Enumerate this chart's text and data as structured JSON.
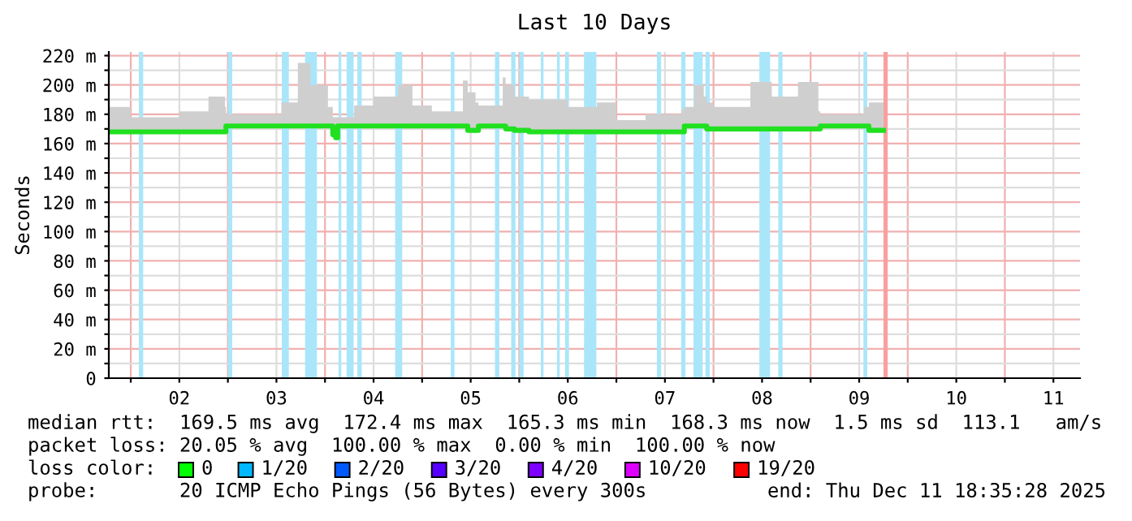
{
  "chart_data": {
    "type": "line",
    "title": "Last 10 Days",
    "ylabel": "Seconds",
    "xlim": [
      1.774,
      11.774
    ],
    "ylim": [
      0,
      222.5
    ],
    "xticks": [
      {
        "value": 2,
        "label": null
      },
      {
        "value": 2.5,
        "label": "02"
      },
      {
        "value": 3,
        "label": null
      },
      {
        "value": 3.5,
        "label": "03"
      },
      {
        "value": 4,
        "label": null
      },
      {
        "value": 4.5,
        "label": "04"
      },
      {
        "value": 5,
        "label": null
      },
      {
        "value": 5.5,
        "label": "05"
      },
      {
        "value": 6,
        "label": null
      },
      {
        "value": 6.5,
        "label": "06"
      },
      {
        "value": 7,
        "label": null
      },
      {
        "value": 7.5,
        "label": "07"
      },
      {
        "value": 8,
        "label": null
      },
      {
        "value": 8.5,
        "label": "08"
      },
      {
        "value": 9,
        "label": null
      },
      {
        "value": 9.5,
        "label": "09"
      },
      {
        "value": 10,
        "label": null
      },
      {
        "value": 10.5,
        "label": "10"
      },
      {
        "value": 11,
        "label": null
      },
      {
        "value": 11.5,
        "label": "11"
      }
    ],
    "yticks": [
      0,
      {
        "value": 10,
        "label": null
      },
      {
        "value": 20,
        "label": "20 m"
      },
      {
        "value": 30,
        "label": null
      },
      {
        "value": 40,
        "label": "40 m"
      },
      {
        "value": 50,
        "label": null
      },
      {
        "value": 60,
        "label": "60 m"
      },
      {
        "value": 70,
        "label": null
      },
      {
        "value": 80,
        "label": "80 m"
      },
      {
        "value": 90,
        "label": null
      },
      {
        "value": 100,
        "label": "100 m"
      },
      {
        "value": 110,
        "label": null
      },
      {
        "value": 120,
        "label": "120 m"
      },
      {
        "value": 130,
        "label": null
      },
      {
        "value": 140,
        "label": "140 m"
      },
      {
        "value": 150,
        "label": null
      },
      {
        "value": 160,
        "label": "160 m"
      },
      {
        "value": 170,
        "label": null
      },
      {
        "value": 180,
        "label": "180 m"
      },
      {
        "value": 190,
        "label": null
      },
      {
        "value": 200,
        "label": "200 m"
      },
      {
        "value": 210,
        "label": null
      },
      {
        "value": 220,
        "label": "220 m"
      }
    ],
    "grid": true,
    "series": [
      {
        "color": "#20e020",
        "x": [
          1.78,
          2.0,
          2.3,
          2.5,
          2.8,
          2.97,
          2.98,
          3.3,
          3.55,
          3.72,
          3.85,
          4.03,
          4.08,
          4.11,
          4.13,
          4.3,
          4.5,
          4.75,
          4.9,
          5.1,
          5.42,
          5.47,
          5.55,
          5.58,
          5.83,
          5.86,
          5.95,
          6.1,
          6.5,
          6.8,
          7.0,
          7.3,
          7.67,
          7.7,
          7.8,
          7.9,
          7.93,
          8.0,
          8.38,
          8.6,
          8.87,
          9.08,
          9.1,
          9.3,
          9.55,
          9.6,
          9.75
        ],
        "values": [
          168,
          168,
          168,
          168,
          168,
          168,
          172,
          172,
          172,
          172,
          172,
          172,
          166,
          164,
          172,
          172,
          172,
          172,
          172,
          172,
          172,
          169,
          169,
          172,
          172,
          170,
          169,
          168,
          168,
          168,
          168,
          168,
          168,
          172,
          172,
          172,
          170,
          170,
          170,
          170,
          170,
          170,
          172,
          172,
          172,
          169,
          169
        ],
        "lower": [
          168,
          168,
          168,
          168,
          168,
          168,
          172,
          172,
          172,
          172,
          172,
          172,
          166,
          164,
          172,
          172,
          172,
          172,
          172,
          172,
          172,
          169,
          169,
          172,
          172,
          170,
          169,
          168,
          168,
          168,
          168,
          168,
          168,
          172,
          172,
          172,
          170,
          170,
          170,
          170,
          170,
          170,
          172,
          172,
          172,
          169,
          169
        ],
        "upper": [
          185,
          178,
          178,
          182,
          192,
          185,
          180,
          180,
          188,
          215,
          200,
          185,
          178,
          178,
          178,
          186,
          192,
          200,
          186,
          182,
          203,
          195,
          188,
          186,
          205,
          200,
          192,
          190,
          185,
          188,
          176,
          180,
          183,
          185,
          200,
          192,
          188,
          185,
          202,
          192,
          202,
          182,
          180,
          180,
          185,
          188,
          202
        ]
      }
    ],
    "bands": [
      {
        "axis": "x",
        "from": 2.083,
        "to": 2.128,
        "color": "#aae6fa"
      },
      {
        "axis": "x",
        "from": 3.0,
        "to": 3.045,
        "color": "#aae6fa"
      },
      {
        "axis": "x",
        "from": 3.555,
        "to": 3.628,
        "color": "#aae6fa"
      },
      {
        "axis": "x",
        "from": 3.795,
        "to": 3.917,
        "color": "#aae6fa"
      },
      {
        "axis": "x",
        "from": 4.139,
        "to": 4.167,
        "color": "#aae6fa"
      },
      {
        "axis": "x",
        "from": 4.222,
        "to": 4.295,
        "color": "#aae6fa"
      },
      {
        "axis": "x",
        "from": 4.333,
        "to": 4.378,
        "color": "#aae6fa"
      },
      {
        "axis": "x",
        "from": 4.722,
        "to": 4.795,
        "color": "#aae6fa"
      },
      {
        "axis": "x",
        "from": 5.295,
        "to": 5.333,
        "color": "#aae6fa"
      },
      {
        "axis": "x",
        "from": 5.75,
        "to": 5.795,
        "color": "#aae6fa"
      },
      {
        "axis": "x",
        "from": 5.917,
        "to": 5.961,
        "color": "#aae6fa"
      },
      {
        "axis": "x",
        "from": 6.0,
        "to": 6.045,
        "color": "#aae6fa"
      },
      {
        "axis": "x",
        "from": 6.222,
        "to": 6.25,
        "color": "#aae6fa"
      },
      {
        "axis": "x",
        "from": 6.389,
        "to": 6.417,
        "color": "#aae6fa"
      },
      {
        "axis": "x",
        "from": 6.472,
        "to": 6.511,
        "color": "#aae6fa"
      },
      {
        "axis": "x",
        "from": 6.667,
        "to": 6.794,
        "color": "#aae6fa"
      },
      {
        "axis": "x",
        "from": 7.417,
        "to": 7.461,
        "color": "#aae6fa"
      },
      {
        "axis": "x",
        "from": 7.667,
        "to": 7.711,
        "color": "#aae6fa"
      },
      {
        "axis": "x",
        "from": 7.794,
        "to": 7.889,
        "color": "#aae6fa"
      },
      {
        "axis": "x",
        "from": 7.917,
        "to": 7.961,
        "color": "#aae6fa"
      },
      {
        "axis": "x",
        "from": 8.472,
        "to": 8.583,
        "color": "#aae6fa"
      },
      {
        "axis": "x",
        "from": 8.667,
        "to": 8.711,
        "color": "#aae6fa"
      },
      {
        "axis": "x",
        "from": 9.544,
        "to": 9.583,
        "color": "#aae6fa"
      },
      {
        "axis": "x",
        "from": 9.75,
        "to": 9.794,
        "color": "#f8a0a0"
      }
    ],
    "annotations": [
      "median rtt:  169.5 ms avg  172.4 ms max  165.3 ms min  168.3 ms now  1.5 ms sd  113.1   am/s",
      "packet loss: 20.05 % avg  100.00 % max  0.00 % min  100.00 % now",
      "loss color:",
      "0",
      "1/20",
      "2/20",
      "3/20",
      "4/20",
      "10/20",
      "19/20",
      "probe:       20 ICMP Echo Pings (56 Bytes) every 300s",
      "end: Thu Dec 11 18:35:28 2025"
    ]
  }
}
